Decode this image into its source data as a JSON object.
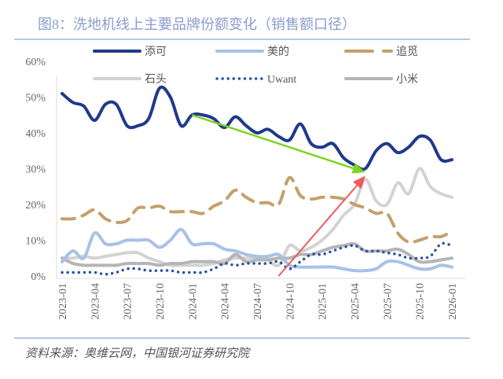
{
  "title": "图8：洗地机线上主要品牌份额变化（销售额口径）",
  "source": "资料来源：奥维云网，中国银河证券研究院",
  "chart_data": {
    "type": "line",
    "title": "图8：洗地机线上主要品牌份额变化（销售额口径）",
    "xlabel": "",
    "ylabel": "",
    "ylim": [
      0,
      60
    ],
    "yticks": [
      "0%",
      "10%",
      "20%",
      "30%",
      "40%",
      "50%",
      "60%"
    ],
    "grid": false,
    "legend": "top",
    "x": [
      "2023-01",
      "2023-02",
      "2023-03",
      "2023-04",
      "2023-05",
      "2023-06",
      "2023-07",
      "2023-08",
      "2023-09",
      "2023-10",
      "2023-11",
      "2023-12",
      "2024-01",
      "2024-02",
      "2024-03",
      "2024-04",
      "2024-05",
      "2024-06",
      "2024-07",
      "2024-08",
      "2024-09",
      "2024-10",
      "2024-11",
      "2024-12",
      "2025-01",
      "2025-02",
      "2025-03",
      "2025-04",
      "2025-05",
      "2025-06",
      "2025-07",
      "2025-08",
      "2025-09",
      "2025-10",
      "2025-11",
      "2025-12",
      "2026-01"
    ],
    "xticks": [
      "2023-01",
      "2023-04",
      "2023-07",
      "2023-10",
      "2024-01",
      "2024-04",
      "2024-07",
      "2024-10",
      "2025-01",
      "2025-04",
      "2025-07",
      "2025-10",
      "2026-01"
    ],
    "series": [
      {
        "name": "添可",
        "color": "#1f3a8a",
        "style": "solid",
        "values": [
          51,
          48.5,
          47.5,
          43.5,
          48,
          48,
          42,
          42,
          44,
          52.5,
          50,
          42,
          45,
          45,
          44,
          41.5,
          44.5,
          42,
          40,
          41,
          39,
          38,
          42.5,
          37,
          36,
          37,
          33,
          31,
          30,
          35,
          37,
          34.5,
          36,
          39,
          38,
          32.5,
          32.5
        ]
      },
      {
        "name": "美的",
        "color": "#a9c1e8",
        "style": "solid",
        "values": [
          4,
          7,
          5,
          12,
          9,
          9,
          10,
          10,
          10,
          8,
          10,
          13,
          9,
          9,
          9,
          7.5,
          7,
          6,
          5.5,
          5.5,
          6,
          3,
          2.5,
          2.5,
          2.5,
          2.5,
          2,
          1.5,
          1.5,
          2,
          4,
          4,
          3,
          2,
          2,
          3,
          2.5
        ]
      },
      {
        "name": "追觅",
        "color": "#c4a06c",
        "style": "dashed",
        "values": [
          16,
          16,
          17,
          18.5,
          16,
          15,
          15.5,
          19,
          19,
          19.5,
          18,
          18,
          18,
          17.5,
          19.5,
          21,
          24,
          22,
          20.5,
          20.5,
          20,
          27.5,
          22.5,
          21.5,
          22,
          22,
          21.5,
          20,
          19,
          17.5,
          17.5,
          12,
          9.5,
          10,
          11,
          11,
          12.5
        ]
      },
      {
        "name": "石头",
        "color": "#d3d3d3",
        "style": "solid",
        "values": [
          5,
          5,
          5.5,
          5,
          5.5,
          6,
          6.5,
          6.5,
          5,
          4,
          3,
          3,
          3,
          3,
          3.5,
          4.5,
          5,
          5,
          5,
          4.5,
          3,
          8.5,
          7,
          8,
          10,
          13,
          17,
          20,
          27,
          21,
          20,
          26,
          23,
          30,
          25,
          23,
          22
        ]
      },
      {
        "name": "Uwant",
        "color": "#2f55a4",
        "style": "dotted",
        "values": [
          1,
          1,
          1,
          1,
          0.5,
          1,
          2,
          2,
          1.5,
          1.5,
          1.5,
          1,
          1,
          1,
          2,
          3.5,
          3,
          3.5,
          3.5,
          3.5,
          4,
          2,
          4,
          6,
          6,
          7,
          8,
          8.5,
          7,
          7,
          6.5,
          6,
          5,
          5,
          5.5,
          9,
          8.5
        ]
      },
      {
        "name": "小米",
        "color": "#b5b5b5",
        "style": "solid",
        "values": [
          5,
          3.5,
          3,
          3,
          3,
          3,
          3.5,
          3.5,
          3.5,
          3,
          3.5,
          3.5,
          4,
          4,
          4,
          3.5,
          6,
          4,
          4.5,
          4.5,
          5,
          5,
          6,
          6,
          7,
          8,
          8.5,
          9,
          7,
          7,
          7,
          7.5,
          6,
          4,
          4,
          4.5,
          5
        ]
      }
    ],
    "annotations": [
      {
        "type": "arrow",
        "color": "#7ed321",
        "from": "2024-01",
        "to": "2025-05",
        "from_value": 45,
        "to_value": 29
      },
      {
        "type": "arrow",
        "color": "#f05a5a",
        "from": "2024-09",
        "to": "2025-05",
        "from_value": 0,
        "to_value": 28
      }
    ]
  }
}
